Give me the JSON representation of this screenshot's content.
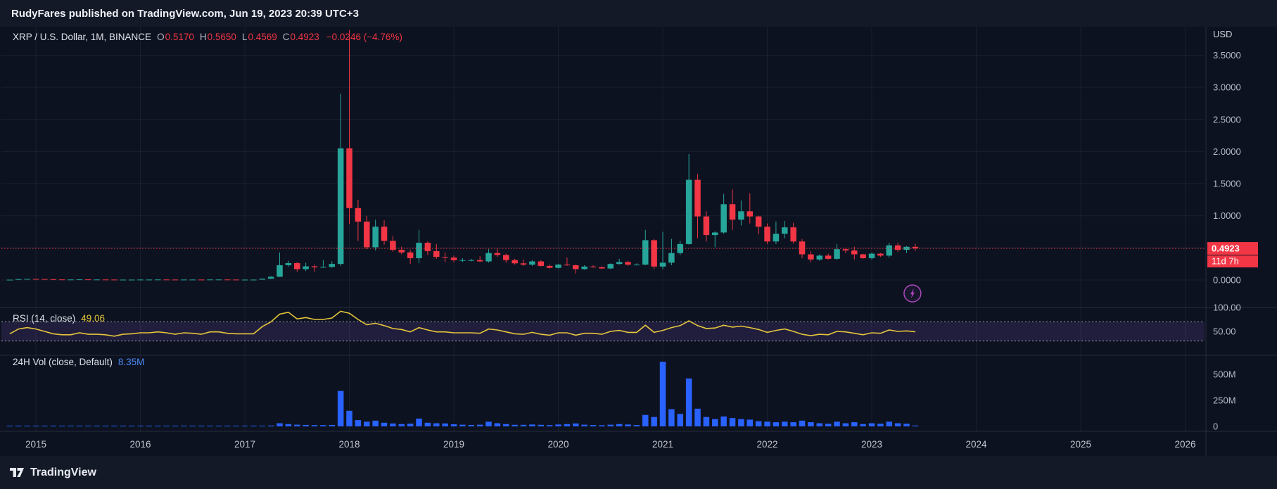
{
  "header": {
    "publish_line": "RudyFares published on TradingView.com, Jun 19, 2023 20:39 UTC+3"
  },
  "footer": {
    "brand": "TradingView"
  },
  "legend": {
    "main": {
      "title": "XRP / U.S. Dollar, 1M, BINANCE",
      "o_label": "O",
      "o": "0.5170",
      "h_label": "H",
      "h": "0.5650",
      "l_label": "L",
      "l": "0.4569",
      "c_label": "C",
      "c": "0.4923",
      "change": "−0.0246 (−4.76%)"
    },
    "rsi": {
      "title": "RSI (14, close)",
      "value": "49.06"
    },
    "vol": {
      "title": "24H Vol (close, Default)",
      "value": "8.35M"
    }
  },
  "colors": {
    "up": "#26a69a",
    "down": "#f23645",
    "rsi_line": "#e5c63b",
    "volume": "#2962ff",
    "price_line": "#f23645",
    "band_fill": "rgba(126,87,194,0.18)",
    "band_edge": "#b5b9c4",
    "marker_purple": "#ab47bc",
    "axis_text": "#b6bac6",
    "grid": "rgba(255,255,255,0.06)",
    "separator": "#262c3b"
  },
  "axes": {
    "price": {
      "currency": "USD",
      "ticks": [
        {
          "v": 3.5,
          "label": "3.5000"
        },
        {
          "v": 3.0,
          "label": "3.0000"
        },
        {
          "v": 2.5,
          "label": "2.5000"
        },
        {
          "v": 2.0,
          "label": "2.0000"
        },
        {
          "v": 1.5,
          "label": "1.5000"
        },
        {
          "v": 1.0,
          "label": "1.0000"
        },
        {
          "v": 0.0,
          "label": "0.0000"
        }
      ],
      "grid_values": [
        0,
        0.5,
        1.0,
        1.5,
        2.0,
        2.5,
        3.0,
        3.5
      ],
      "last_price": 0.4923,
      "last_price_label": "0.4923",
      "countdown": "11d 7h"
    },
    "rsi": {
      "ticks": [
        {
          "v": 100,
          "label": "100.00"
        },
        {
          "v": 50,
          "label": "50.00"
        }
      ],
      "band": [
        30,
        70
      ]
    },
    "volume": {
      "ticks": [
        {
          "v": 500,
          "label": "500M"
        },
        {
          "v": 250,
          "label": "250M"
        },
        {
          "v": 0,
          "label": "0"
        }
      ]
    },
    "time": {
      "years": [
        "2015",
        "2016",
        "2017",
        "2018",
        "2019",
        "2020",
        "2021",
        "2022",
        "2023",
        "2024",
        "2025",
        "2026"
      ]
    }
  },
  "marker": {
    "icon": "lightning",
    "month": "2023-06"
  },
  "chart_data": {
    "type": "candlestick",
    "title": "XRP / U.S. Dollar, 1M, BINANCE",
    "symbol": "XRP/USD",
    "exchange": "BINANCE",
    "interval": "1M",
    "last_bar": {
      "open": 0.517,
      "high": 0.565,
      "low": 0.4569,
      "close": 0.4923,
      "change": -0.0246,
      "change_pct": -4.76
    },
    "price_range": [
      0,
      3.9
    ],
    "x_start_month": "2014-10",
    "indicators": [
      {
        "name": "RSI (14, close)",
        "last": 49.06,
        "band": [
          30,
          70
        ],
        "range": [
          0,
          100
        ]
      },
      {
        "name": "24H Vol (close, Default)",
        "last": "8.35M",
        "unit": "millions USD"
      }
    ],
    "columns": [
      "month",
      "open",
      "high",
      "low",
      "close",
      "volume_m",
      "rsi"
    ],
    "rows": [
      [
        "2014-10",
        0.005,
        0.006,
        0.004,
        0.005,
        2,
        45
      ],
      [
        "2014-11",
        0.005,
        0.016,
        0.005,
        0.014,
        3,
        55
      ],
      [
        "2014-12",
        0.014,
        0.018,
        0.012,
        0.017,
        3,
        58
      ],
      [
        "2015-01",
        0.017,
        0.02,
        0.013,
        0.016,
        2,
        55
      ],
      [
        "2015-02",
        0.016,
        0.017,
        0.011,
        0.013,
        2,
        50
      ],
      [
        "2015-03",
        0.013,
        0.014,
        0.008,
        0.009,
        2,
        45
      ],
      [
        "2015-04",
        0.009,
        0.01,
        0.007,
        0.008,
        1,
        43
      ],
      [
        "2015-05",
        0.008,
        0.009,
        0.007,
        0.008,
        1,
        43
      ],
      [
        "2015-06",
        0.008,
        0.011,
        0.008,
        0.01,
        1,
        47
      ],
      [
        "2015-07",
        0.01,
        0.011,
        0.007,
        0.008,
        1,
        44
      ],
      [
        "2015-08",
        0.008,
        0.009,
        0.006,
        0.008,
        1,
        44
      ],
      [
        "2015-09",
        0.008,
        0.008,
        0.006,
        0.007,
        1,
        43
      ],
      [
        "2015-10",
        0.007,
        0.008,
        0.004,
        0.005,
        1,
        40
      ],
      [
        "2015-11",
        0.005,
        0.007,
        0.004,
        0.006,
        1,
        44
      ],
      [
        "2015-12",
        0.006,
        0.007,
        0.005,
        0.006,
        1,
        45
      ],
      [
        "2016-01",
        0.006,
        0.008,
        0.005,
        0.007,
        1,
        47
      ],
      [
        "2016-02",
        0.007,
        0.008,
        0.006,
        0.007,
        1,
        47
      ],
      [
        "2016-03",
        0.007,
        0.009,
        0.006,
        0.008,
        1,
        49
      ],
      [
        "2016-04",
        0.008,
        0.009,
        0.007,
        0.007,
        1,
        47
      ],
      [
        "2016-05",
        0.007,
        0.008,
        0.005,
        0.006,
        1,
        44
      ],
      [
        "2016-06",
        0.006,
        0.008,
        0.006,
        0.007,
        1,
        47
      ],
      [
        "2016-07",
        0.007,
        0.008,
        0.006,
        0.007,
        1,
        46
      ],
      [
        "2016-08",
        0.007,
        0.007,
        0.005,
        0.006,
        1,
        44
      ],
      [
        "2016-09",
        0.006,
        0.009,
        0.006,
        0.008,
        1,
        49
      ],
      [
        "2016-10",
        0.008,
        0.009,
        0.007,
        0.008,
        1,
        49
      ],
      [
        "2016-11",
        0.008,
        0.009,
        0.006,
        0.007,
        1,
        46
      ],
      [
        "2016-12",
        0.007,
        0.008,
        0.006,
        0.006,
        1,
        45
      ],
      [
        "2017-01",
        0.006,
        0.007,
        0.005,
        0.006,
        1,
        45
      ],
      [
        "2017-02",
        0.006,
        0.007,
        0.005,
        0.006,
        1,
        45
      ],
      [
        "2017-03",
        0.006,
        0.026,
        0.006,
        0.021,
        4,
        60
      ],
      [
        "2017-04",
        0.021,
        0.06,
        0.019,
        0.051,
        8,
        70
      ],
      [
        "2017-05",
        0.051,
        0.43,
        0.048,
        0.231,
        30,
        86
      ],
      [
        "2017-06",
        0.231,
        0.3,
        0.21,
        0.263,
        22,
        90
      ],
      [
        "2017-07",
        0.263,
        0.28,
        0.13,
        0.17,
        16,
        76
      ],
      [
        "2017-08",
        0.17,
        0.27,
        0.14,
        0.213,
        14,
        79
      ],
      [
        "2017-09",
        0.213,
        0.24,
        0.13,
        0.197,
        12,
        75
      ],
      [
        "2017-10",
        0.197,
        0.31,
        0.19,
        0.204,
        12,
        75
      ],
      [
        "2017-11",
        0.204,
        0.29,
        0.19,
        0.25,
        14,
        78
      ],
      [
        "2017-12",
        0.25,
        2.9,
        0.22,
        2.05,
        340,
        92
      ],
      [
        "2018-01",
        2.05,
        3.89,
        0.87,
        1.12,
        150,
        88
      ],
      [
        "2018-02",
        1.12,
        1.25,
        0.61,
        0.91,
        60,
        75
      ],
      [
        "2018-03",
        0.91,
        1.0,
        0.48,
        0.51,
        45,
        64
      ],
      [
        "2018-04",
        0.51,
        0.94,
        0.46,
        0.83,
        55,
        67
      ],
      [
        "2018-05",
        0.83,
        0.93,
        0.55,
        0.61,
        35,
        62
      ],
      [
        "2018-06",
        0.61,
        0.69,
        0.44,
        0.47,
        28,
        56
      ],
      [
        "2018-07",
        0.47,
        0.52,
        0.4,
        0.43,
        22,
        54
      ],
      [
        "2018-08",
        0.43,
        0.47,
        0.25,
        0.34,
        26,
        49
      ],
      [
        "2018-09",
        0.34,
        0.78,
        0.26,
        0.58,
        75,
        58
      ],
      [
        "2018-10",
        0.58,
        0.6,
        0.39,
        0.45,
        35,
        53
      ],
      [
        "2018-11",
        0.45,
        0.56,
        0.33,
        0.36,
        30,
        49
      ],
      [
        "2018-12",
        0.36,
        0.43,
        0.28,
        0.35,
        28,
        49
      ],
      [
        "2019-01",
        0.35,
        0.38,
        0.28,
        0.31,
        20,
        47
      ],
      [
        "2019-02",
        0.31,
        0.34,
        0.28,
        0.31,
        16,
        47
      ],
      [
        "2019-03",
        0.31,
        0.33,
        0.29,
        0.31,
        14,
        47
      ],
      [
        "2019-04",
        0.31,
        0.37,
        0.28,
        0.29,
        16,
        46
      ],
      [
        "2019-05",
        0.29,
        0.48,
        0.27,
        0.42,
        45,
        55
      ],
      [
        "2019-06",
        0.42,
        0.49,
        0.36,
        0.39,
        30,
        53
      ],
      [
        "2019-07",
        0.39,
        0.41,
        0.27,
        0.31,
        22,
        49
      ],
      [
        "2019-08",
        0.31,
        0.33,
        0.24,
        0.26,
        15,
        45
      ],
      [
        "2019-09",
        0.26,
        0.32,
        0.22,
        0.24,
        15,
        44
      ],
      [
        "2019-10",
        0.24,
        0.31,
        0.22,
        0.29,
        18,
        48
      ],
      [
        "2019-11",
        0.29,
        0.31,
        0.21,
        0.22,
        15,
        44
      ],
      [
        "2019-12",
        0.22,
        0.24,
        0.18,
        0.19,
        12,
        42
      ],
      [
        "2020-01",
        0.19,
        0.25,
        0.18,
        0.24,
        18,
        47
      ],
      [
        "2020-02",
        0.24,
        0.35,
        0.22,
        0.23,
        22,
        47
      ],
      [
        "2020-03",
        0.23,
        0.24,
        0.1,
        0.17,
        28,
        42
      ],
      [
        "2020-04",
        0.17,
        0.23,
        0.16,
        0.21,
        16,
        46
      ],
      [
        "2020-05",
        0.21,
        0.23,
        0.19,
        0.2,
        13,
        46
      ],
      [
        "2020-06",
        0.2,
        0.21,
        0.17,
        0.18,
        11,
        44
      ],
      [
        "2020-07",
        0.18,
        0.26,
        0.17,
        0.25,
        16,
        50
      ],
      [
        "2020-08",
        0.25,
        0.33,
        0.24,
        0.28,
        22,
        52
      ],
      [
        "2020-09",
        0.28,
        0.3,
        0.22,
        0.24,
        18,
        48
      ],
      [
        "2020-10",
        0.24,
        0.26,
        0.23,
        0.24,
        13,
        48
      ],
      [
        "2020-11",
        0.24,
        0.78,
        0.23,
        0.62,
        110,
        63
      ],
      [
        "2020-12",
        0.62,
        0.64,
        0.17,
        0.21,
        90,
        48
      ],
      [
        "2021-01",
        0.21,
        0.75,
        0.17,
        0.27,
        620,
        52
      ],
      [
        "2021-02",
        0.27,
        0.64,
        0.23,
        0.42,
        165,
        58
      ],
      [
        "2021-03",
        0.42,
        0.61,
        0.39,
        0.56,
        120,
        62
      ],
      [
        "2021-04",
        0.56,
        1.96,
        0.55,
        1.56,
        460,
        72
      ],
      [
        "2021-05",
        1.56,
        1.65,
        0.65,
        0.99,
        170,
        62
      ],
      [
        "2021-06",
        0.99,
        1.07,
        0.6,
        0.7,
        90,
        56
      ],
      [
        "2021-07",
        0.7,
        0.76,
        0.51,
        0.74,
        70,
        57
      ],
      [
        "2021-08",
        0.74,
        1.34,
        0.72,
        1.18,
        95,
        63
      ],
      [
        "2021-09",
        1.18,
        1.41,
        0.78,
        0.94,
        80,
        59
      ],
      [
        "2021-10",
        0.94,
        1.24,
        0.85,
        1.07,
        70,
        61
      ],
      [
        "2021-11",
        1.07,
        1.35,
        0.88,
        0.99,
        65,
        58
      ],
      [
        "2021-12",
        0.99,
        1.0,
        0.71,
        0.83,
        50,
        54
      ],
      [
        "2022-01",
        0.83,
        0.88,
        0.56,
        0.6,
        45,
        48
      ],
      [
        "2022-02",
        0.6,
        0.91,
        0.56,
        0.72,
        40,
        52
      ],
      [
        "2022-03",
        0.72,
        0.92,
        0.65,
        0.82,
        45,
        55
      ],
      [
        "2022-04",
        0.82,
        0.89,
        0.57,
        0.6,
        40,
        50
      ],
      [
        "2022-05",
        0.6,
        0.64,
        0.34,
        0.4,
        55,
        44
      ],
      [
        "2022-06",
        0.4,
        0.45,
        0.28,
        0.32,
        40,
        41
      ],
      [
        "2022-07",
        0.32,
        0.4,
        0.3,
        0.38,
        30,
        44
      ],
      [
        "2022-08",
        0.38,
        0.41,
        0.32,
        0.33,
        25,
        43
      ],
      [
        "2022-09",
        0.33,
        0.56,
        0.31,
        0.48,
        45,
        50
      ],
      [
        "2022-10",
        0.48,
        0.49,
        0.42,
        0.46,
        30,
        49
      ],
      [
        "2022-11",
        0.46,
        0.52,
        0.32,
        0.4,
        40,
        46
      ],
      [
        "2022-12",
        0.4,
        0.41,
        0.33,
        0.34,
        22,
        43
      ],
      [
        "2023-01",
        0.34,
        0.43,
        0.32,
        0.41,
        30,
        47
      ],
      [
        "2023-02",
        0.41,
        0.42,
        0.36,
        0.38,
        25,
        46
      ],
      [
        "2023-03",
        0.38,
        0.58,
        0.35,
        0.54,
        45,
        53
      ],
      [
        "2023-04",
        0.54,
        0.58,
        0.44,
        0.47,
        30,
        50
      ],
      [
        "2023-05",
        0.47,
        0.53,
        0.42,
        0.517,
        25,
        51
      ],
      [
        "2023-06",
        0.517,
        0.565,
        0.4569,
        0.4923,
        8.35,
        49.06
      ]
    ]
  }
}
